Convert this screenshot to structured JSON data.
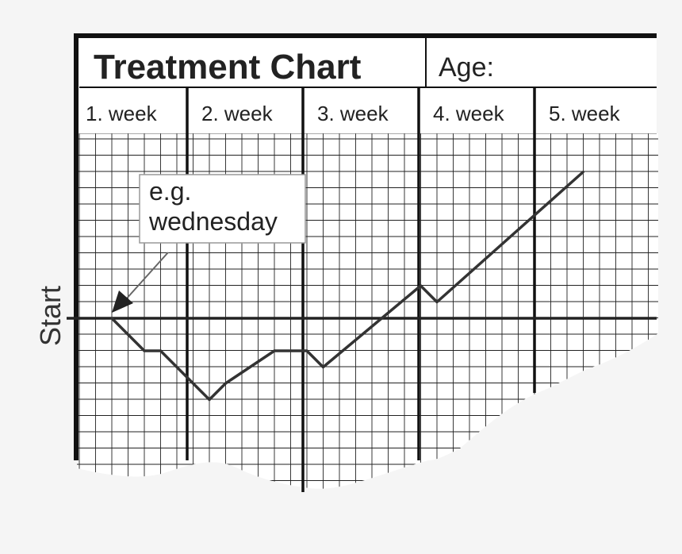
{
  "chart_data": {
    "type": "line",
    "title": "Treatment Chart",
    "age_label": "Age:",
    "categories": [
      "1. week",
      "2. week",
      "3. week",
      "4. week",
      "5. week"
    ],
    "baseline_label": "Start",
    "callout": {
      "line1": "e.g.",
      "line2": "wednesday"
    },
    "unit": "day",
    "x": [
      0,
      2,
      3,
      6,
      7,
      10,
      12,
      13,
      19,
      20,
      29
    ],
    "y": [
      0,
      -2,
      -2,
      -5,
      -4,
      -2,
      -2,
      -3,
      2,
      1,
      9
    ],
    "grid": true,
    "colors": {
      "line": "#333333",
      "grid": "#222222",
      "background": "#f5f5f5",
      "sheet": "#ffffff"
    }
  }
}
